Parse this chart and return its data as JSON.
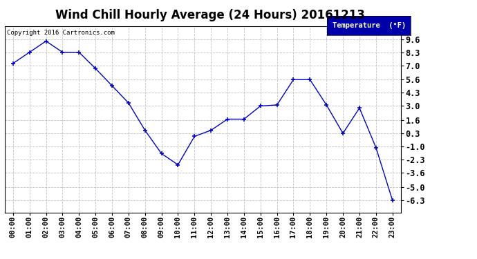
{
  "title": "Wind Chill Hourly Average (24 Hours) 20161213",
  "copyright": "Copyright 2016 Cartronics.com",
  "legend_label": "Temperature  (°F)",
  "hours": [
    "00:00",
    "01:00",
    "02:00",
    "03:00",
    "04:00",
    "05:00",
    "06:00",
    "07:00",
    "08:00",
    "09:00",
    "10:00",
    "11:00",
    "12:00",
    "13:00",
    "14:00",
    "15:00",
    "16:00",
    "17:00",
    "18:00",
    "19:00",
    "20:00",
    "21:00",
    "22:00",
    "23:00"
  ],
  "values": [
    7.2,
    8.3,
    9.4,
    8.3,
    8.3,
    6.7,
    5.0,
    3.3,
    0.6,
    -1.7,
    -2.8,
    0.0,
    0.6,
    1.7,
    1.7,
    3.0,
    3.1,
    5.6,
    5.6,
    3.1,
    0.3,
    2.8,
    -1.1,
    -6.3
  ],
  "line_color": "#0000cc",
  "marker": "+",
  "marker_color": "#0000cc",
  "bg_color": "#ffffff",
  "grid_color": "#bbbbbb",
  "ylim_min": -7.5,
  "ylim_max": 10.9,
  "yticks": [
    9.6,
    8.3,
    7.0,
    5.6,
    4.3,
    3.0,
    1.6,
    0.3,
    -1.0,
    -2.3,
    -3.6,
    -5.0,
    -6.3
  ],
  "legend_bg": "#0000aa",
  "legend_text_color": "#ffffff",
  "title_fontsize": 12,
  "axis_fontsize": 7.5,
  "ytick_fontsize": 8.5
}
